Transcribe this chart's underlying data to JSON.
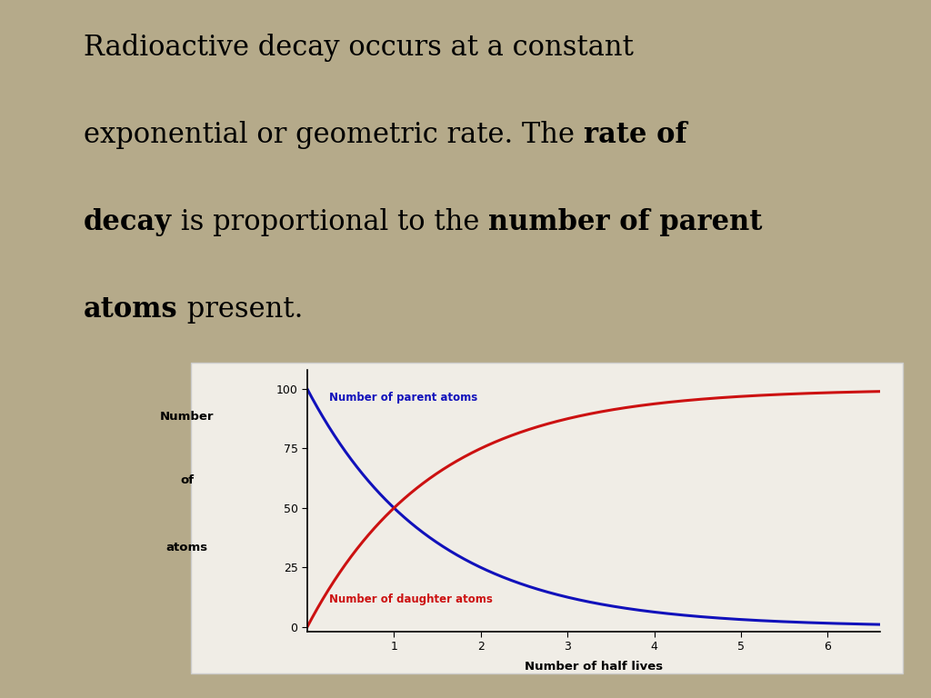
{
  "background_color": "#b5aa8a",
  "chart_bg_color": "#f0ede6",
  "chart_border_color": "#cccccc",
  "parent_color": "#1111bb",
  "daughter_color": "#cc1111",
  "parent_label": "Number of parent atoms",
  "daughter_label": "Number of daughter atoms",
  "xlabel": "Number of half lives",
  "yticks": [
    0,
    25,
    50,
    75,
    100
  ],
  "xticks": [
    1,
    2,
    3,
    4,
    5,
    6
  ],
  "xlim": [
    0,
    6.6
  ],
  "ylim": [
    -2,
    108
  ],
  "label_fontsize": 8.5,
  "axis_label_fontsize": 9.5,
  "tick_fontsize": 9,
  "title_fontsize": 22,
  "text_lines": [
    [
      [
        "Radioactive decay occurs at a constant",
        false
      ]
    ],
    [
      [
        "exponential or geometric rate. The ",
        false
      ],
      [
        "rate of",
        true
      ]
    ],
    [
      [
        "decay",
        true
      ],
      [
        " is proportional to the ",
        false
      ],
      [
        "number of parent",
        true
      ]
    ],
    [
      [
        "atoms",
        true
      ],
      [
        " present.",
        false
      ]
    ]
  ]
}
